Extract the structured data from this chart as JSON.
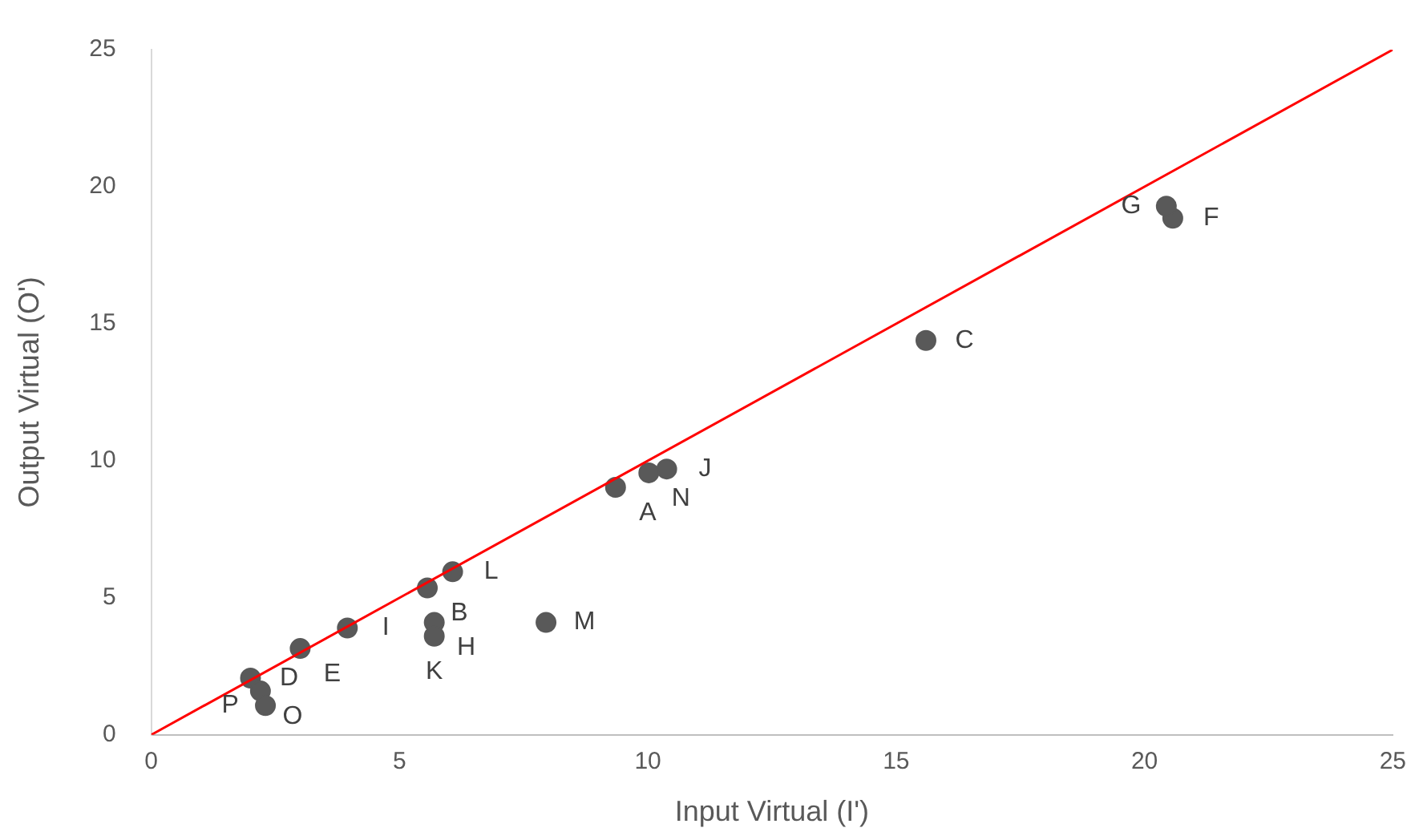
{
  "chart_data": {
    "type": "scatter",
    "xlabel": "Input Virtual (I')",
    "ylabel": "Output Virtual (O')",
    "xlim": [
      0,
      25
    ],
    "ylim": [
      0,
      25
    ],
    "xticks": [
      0,
      5,
      10,
      15,
      20,
      25
    ],
    "yticks": [
      0,
      5,
      10,
      15,
      20,
      25
    ],
    "grid": false,
    "legend": false,
    "marker": "circle",
    "series": [
      {
        "color": "#595959",
        "x": [
          9.35,
          5.56,
          15.6,
          2.0,
          3.0,
          20.57,
          20.44,
          5.7,
          3.95,
          10.38,
          5.7,
          6.07,
          7.95,
          10.02,
          2.2,
          2.3
        ],
        "values": [
          9.03,
          5.36,
          14.39,
          2.07,
          3.15,
          18.85,
          19.29,
          4.1,
          3.9,
          9.7,
          3.6,
          5.95,
          4.1,
          9.56,
          1.6,
          1.07
        ]
      },
      {
        "type": "line",
        "color": "#ff0000",
        "x": [
          0,
          25
        ],
        "values": [
          0,
          25
        ],
        "marker": "none"
      }
    ],
    "annotations": [
      {
        "text": "A",
        "x": 9.35,
        "y": 9.03
      },
      {
        "text": "B",
        "x": 5.56,
        "y": 5.36
      },
      {
        "text": "C",
        "x": 15.6,
        "y": 14.39
      },
      {
        "text": "D",
        "x": 2.0,
        "y": 2.07
      },
      {
        "text": "E",
        "x": 3.0,
        "y": 3.15
      },
      {
        "text": "F",
        "x": 20.57,
        "y": 18.85
      },
      {
        "text": "G",
        "x": 20.44,
        "y": 19.29
      },
      {
        "text": "H",
        "x": 5.7,
        "y": 4.1
      },
      {
        "text": "I",
        "x": 3.95,
        "y": 3.9
      },
      {
        "text": "J",
        "x": 10.38,
        "y": 9.7
      },
      {
        "text": "K",
        "x": 5.7,
        "y": 3.6
      },
      {
        "text": "L",
        "x": 6.07,
        "y": 5.95
      },
      {
        "text": "M",
        "x": 7.95,
        "y": 4.1
      },
      {
        "text": "N",
        "x": 10.02,
        "y": 9.56
      },
      {
        "text": "O",
        "x": 2.2,
        "y": 1.6
      },
      {
        "text": "P",
        "x": 2.3,
        "y": 1.07
      }
    ]
  }
}
